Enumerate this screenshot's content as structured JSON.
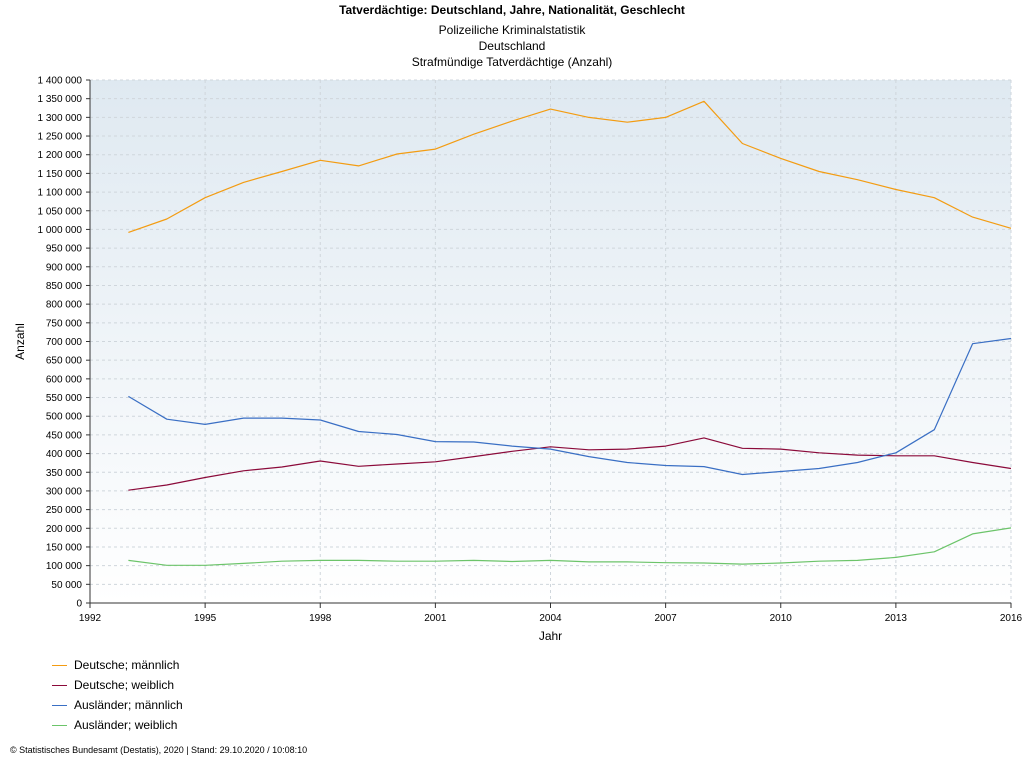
{
  "header": {
    "title": "Tatverdächtige: Deutschland, Jahre, Nationalität, Geschlecht",
    "subtitle_lines": [
      "Polizeiliche Kriminalstatistik",
      "Deutschland",
      "Strafmündige Tatverdächtige (Anzahl)"
    ]
  },
  "footer": {
    "text": "© Statistisches Bundesamt (Destatis), 2020 | Stand: 29.10.2020 / 10:08:10"
  },
  "chart_data": {
    "type": "line",
    "title": "Tatverdächtige: Deutschland, Jahre, Nationalität, Geschlecht",
    "xlabel": "Jahr",
    "ylabel": "Anzahl",
    "xlim": [
      1992,
      2016
    ],
    "ylim": [
      0,
      1400000
    ],
    "x_ticks": [
      "1992",
      "1995",
      "1998",
      "2001",
      "2004",
      "2007",
      "2010",
      "2013",
      "2016"
    ],
    "y_ticks": [
      "0",
      "50 000",
      "100 000",
      "150 000",
      "200 000",
      "250 000",
      "300 000",
      "350 000",
      "400 000",
      "450 000",
      "500 000",
      "550 000",
      "600 000",
      "650 000",
      "700 000",
      "750 000",
      "800 000",
      "850 000",
      "900 000",
      "950 000",
      "1 000 000",
      "1 050 000",
      "1 100 000",
      "1 150 000",
      "1 200 000",
      "1 250 000",
      "1 300 000",
      "1 350 000",
      "1 400 000"
    ],
    "grid": true,
    "legend_position": "bottom-left",
    "x": [
      1993,
      1994,
      1995,
      1996,
      1997,
      1998,
      1999,
      2000,
      2001,
      2002,
      2003,
      2004,
      2005,
      2006,
      2007,
      2008,
      2009,
      2010,
      2011,
      2012,
      2013,
      2014,
      2015,
      2016
    ],
    "series": [
      {
        "name": "Deutsche; männlich",
        "color": "#f39c12",
        "values": [
          992000,
          1028000,
          1085000,
          1126000,
          1155000,
          1185000,
          1170000,
          1202000,
          1215000,
          1255000,
          1290000,
          1322000,
          1300000,
          1287000,
          1300000,
          1343000,
          1230000,
          1190000,
          1155000,
          1133000,
          1107000,
          1085000,
          1033000,
          1003000
        ]
      },
      {
        "name": "Deutsche; weiblich",
        "color": "#8b0a3a",
        "values": [
          302000,
          316000,
          336000,
          354000,
          364000,
          380000,
          366000,
          372000,
          378000,
          392000,
          406000,
          418000,
          410000,
          412000,
          420000,
          442000,
          414000,
          412000,
          402000,
          396000,
          394000,
          394000,
          376000,
          360000
        ]
      },
      {
        "name": "Ausländer; männlich",
        "color": "#3a6fc4",
        "values": [
          553000,
          492000,
          478000,
          495000,
          495000,
          490000,
          459000,
          451000,
          432000,
          431000,
          420000,
          412000,
          392000,
          376000,
          368000,
          365000,
          344000,
          352000,
          360000,
          376000,
          402000,
          464000,
          694000,
          708000
        ]
      },
      {
        "name": "Ausländer; weiblich",
        "color": "#6cc46a",
        "values": [
          114000,
          101000,
          101000,
          106000,
          112000,
          114000,
          114000,
          112000,
          112000,
          114000,
          111000,
          114000,
          110000,
          110000,
          108000,
          107000,
          104000,
          107000,
          112000,
          114000,
          122000,
          137000,
          185000,
          201000
        ]
      }
    ]
  }
}
